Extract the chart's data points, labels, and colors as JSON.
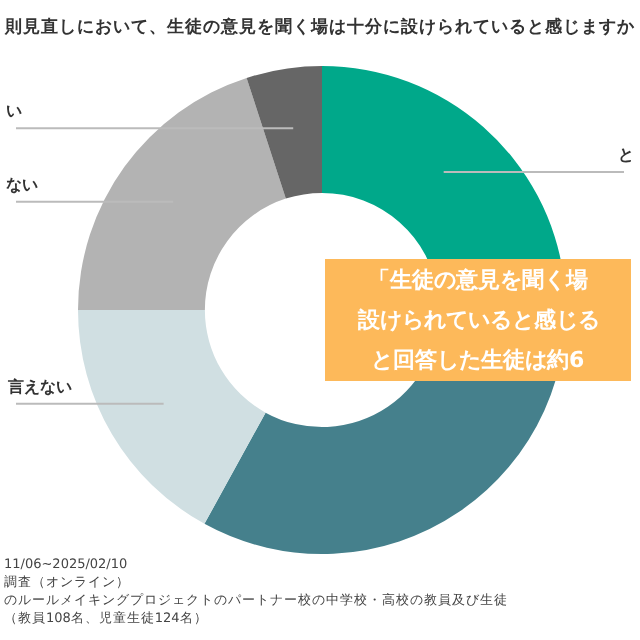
{
  "chart_data": {
    "type": "donut",
    "title": "則見直しにおいて、生徒の意見を聞く場は十分に設けられていると感じますか",
    "categories": [
      "と",
      null,
      "言えない",
      "ない",
      "い"
    ],
    "values": [
      23,
      35,
      17,
      20,
      5
    ],
    "colors": [
      "#00a88a",
      "#45808c",
      "#d0dfe2",
      "#b3b3b3",
      "#666666"
    ],
    "legend": false,
    "annotations": [
      "「生徒の意見を聞く場",
      "設けられていると感じる",
      "と回答した生徒は約6",
      "11/06~2025/02/10",
      "調査（オンライン）",
      "のルールメイキングプロジェクトのパートナー校の中学校・高校の教員及び生徒",
      "（教員108名、児童生徒124名）"
    ]
  }
}
